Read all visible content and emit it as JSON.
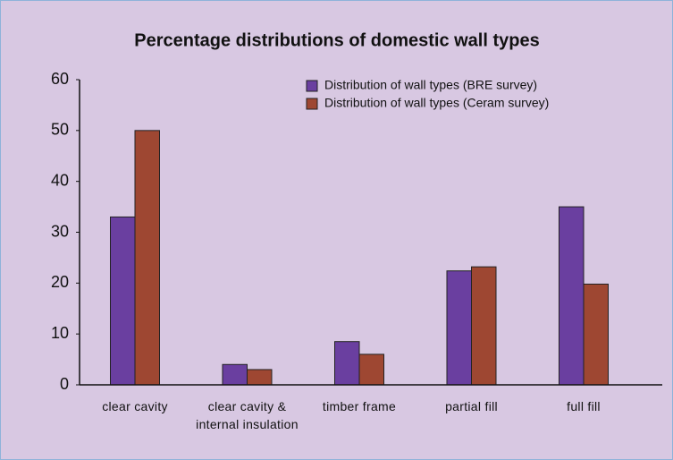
{
  "chart_data": {
    "type": "bar",
    "title": "Percentage distributions of domestic wall types",
    "categories": [
      "clear cavity",
      "clear cavity & internal insulation",
      "timber frame",
      "partial fill",
      "full fill"
    ],
    "series": [
      {
        "name": "Distribution of wall types (BRE survey)",
        "color": "#6a3fa0",
        "values": [
          33,
          4,
          8.5,
          22.4,
          35
        ]
      },
      {
        "name": "Distribution of wall types (Ceram survey)",
        "color": "#9e4732",
        "values": [
          50,
          3,
          6,
          23.2,
          19.8
        ]
      }
    ],
    "ylim": [
      0,
      60
    ],
    "yticks": [
      0,
      10,
      20,
      30,
      40,
      50,
      60
    ],
    "grid": false,
    "legend": "top-right"
  }
}
